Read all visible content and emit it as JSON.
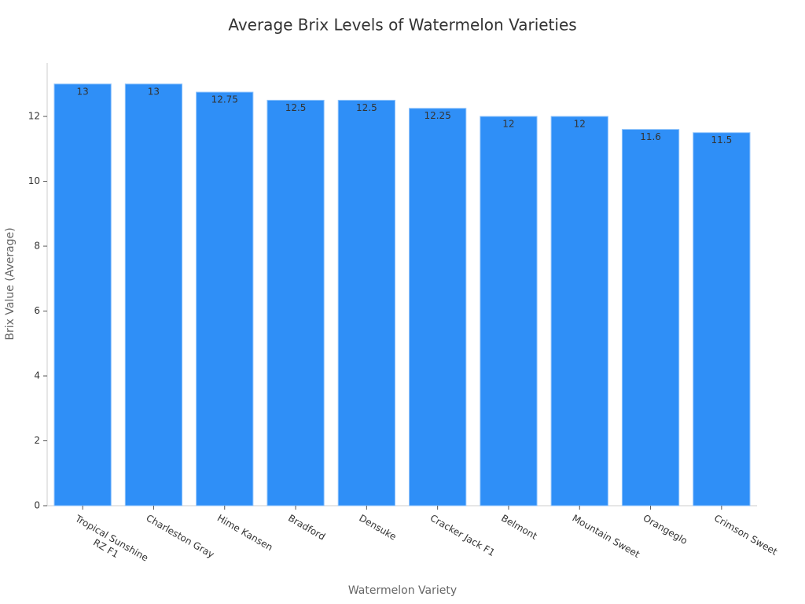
{
  "chart_data": {
    "type": "bar",
    "title": "Average Brix Levels of Watermelon Varieties",
    "x_label": "Watermelon Variety",
    "y_label": "Brix Value (Average)",
    "categories": [
      "Tropical Sunshine RZ F1",
      "Charleston Gray",
      "Hime Kansen",
      "Bradford",
      "Densuke",
      "Cracker Jack F1",
      "Belmont",
      "Mountain Sweet",
      "Orangeglo",
      "Crimson Sweet"
    ],
    "values": [
      13,
      13,
      12.75,
      12.5,
      12.5,
      12.25,
      12,
      12,
      11.6,
      11.5
    ],
    "color": "#2f8ff7",
    "ylim": [
      0,
      13.65
    ],
    "yticks": [
      0,
      2,
      4,
      6,
      8,
      10,
      12
    ],
    "grid": false
  }
}
